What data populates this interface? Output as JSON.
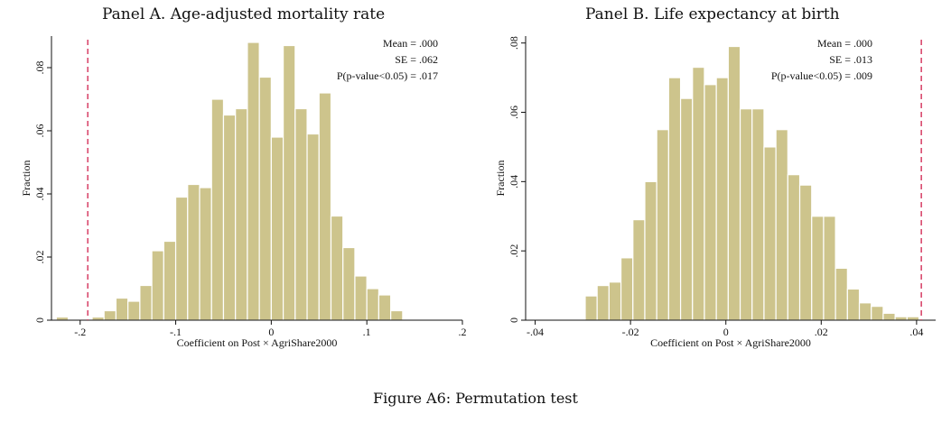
{
  "figure_caption": "Figure A6: Permutation test",
  "chart_data": [
    {
      "type": "bar",
      "title": "Panel A. Age-adjusted mortality rate",
      "xlabel": "Coefficient on Post × AgriShare2000",
      "ylabel": "Fraction",
      "xlim": [
        -0.23,
        0.2
      ],
      "ylim": [
        0,
        0.09
      ],
      "xticks": [
        -0.2,
        -0.1,
        0,
        0.1,
        0.2
      ],
      "xtick_labels": [
        "-.2",
        "-.1",
        "0",
        ".1",
        ".2"
      ],
      "yticks": [
        0,
        0.02,
        0.04,
        0.06,
        0.08
      ],
      "ytick_labels": [
        "0",
        ".02",
        ".04",
        ".06",
        ".08"
      ],
      "bin_width": 0.0125,
      "bin_start": -0.225,
      "values": [
        0.001,
        0,
        0,
        0.001,
        0.003,
        0.007,
        0.006,
        0.011,
        0.022,
        0.025,
        0.039,
        0.043,
        0.042,
        0.07,
        0.065,
        0.067,
        0.088,
        0.077,
        0.058,
        0.087,
        0.067,
        0.059,
        0.072,
        0.033,
        0.023,
        0.014,
        0.01,
        0.008,
        0.003
      ],
      "reference_line": -0.192,
      "bar_color": "#cdc48c",
      "reference_line_color": "#d94a6e",
      "annotations": [
        "Mean = .000",
        "SE = .062",
        "P(p-value<0.05) = .017"
      ],
      "grid": false
    },
    {
      "type": "bar",
      "title": "Panel B. Life expectancy at birth",
      "xlabel": "Coefficient on Post × AgriShare2000",
      "ylabel": "Fraction",
      "xlim": [
        -0.042,
        0.044
      ],
      "ylim": [
        0,
        0.082
      ],
      "xticks": [
        -0.04,
        -0.02,
        0,
        0.02,
        0.04
      ],
      "xtick_labels": [
        "-.04",
        "-.02",
        "0",
        ".02",
        ".04"
      ],
      "yticks": [
        0,
        0.02,
        0.04,
        0.06,
        0.08
      ],
      "ytick_labels": [
        "0",
        ".02",
        ".04",
        ".06",
        ".08"
      ],
      "bin_width": 0.0025,
      "bin_start": -0.0295,
      "values": [
        0.007,
        0.01,
        0.011,
        0.018,
        0.029,
        0.04,
        0.055,
        0.07,
        0.064,
        0.073,
        0.068,
        0.07,
        0.079,
        0.061,
        0.061,
        0.05,
        0.055,
        0.042,
        0.039,
        0.03,
        0.03,
        0.015,
        0.009,
        0.005,
        0.004,
        0.002,
        0.001,
        0.001
      ],
      "reference_line": 0.041,
      "bar_color": "#cdc48c",
      "reference_line_color": "#d94a6e",
      "annotations": [
        "Mean = .000",
        "SE = .013",
        "P(p-value<0.05) = .009"
      ],
      "grid": false
    }
  ]
}
